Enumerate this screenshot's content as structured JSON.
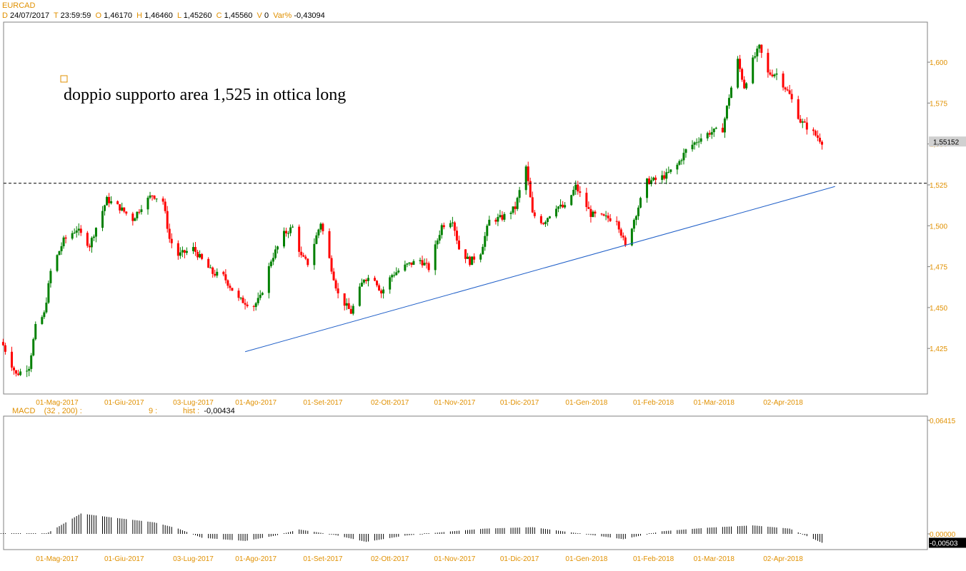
{
  "symbol": "EURCAD",
  "ohlc_header": {
    "d_key": "D",
    "date": "24/07/2017",
    "t_key": "T",
    "time": "23:59:59",
    "o_key": "O",
    "open": "1,46170",
    "h_key": "H",
    "high": "1,46460",
    "l_key": "L",
    "low": "1,45260",
    "c_key": "C",
    "close": "1,45560",
    "v_key": "V",
    "volume": "0",
    "var_key": "Var%",
    "var": "-0,43094"
  },
  "macd_header": {
    "name": "MACD",
    "params": "(32 , 200) :",
    "signal": "9 :",
    "hist_label": "hist :",
    "hist_value": "-0,00434"
  },
  "colors": {
    "up": "#008000",
    "down": "#ff0000",
    "text_orange": "#e09000",
    "trendline": "#1f5fc8",
    "frame": "#808080",
    "price_tag_bg": "#d0d0d0",
    "macd_tag_bg": "#000000"
  },
  "chart_data": [
    {
      "type": "candlestick",
      "title": "EURCAD",
      "annotation": "doppio supporto area 1,525 in ottica long",
      "x_ticks": [
        "01-Mag-2017",
        "01-Giu-2017",
        "03-Lug-2017",
        "01-Ago-2017",
        "01-Set-2017",
        "02-Ott-2017",
        "01-Nov-2017",
        "01-Dic-2017",
        "01-Gen-2018",
        "01-Feb-2018",
        "01-Mar-2018",
        "02-Apr-2018"
      ],
      "y_ticks": [
        "1,600",
        "1,575",
        "1,550",
        "1,525",
        "1,500",
        "1,475",
        "1,450",
        "1,425"
      ],
      "ylim": [
        1.398,
        1.622
      ],
      "last_price_label": "1,55152",
      "last_price": 1.5515,
      "support_level": 1.526,
      "trendline": [
        {
          "x": "2017-07-27",
          "y": 1.423
        },
        {
          "x": "2018-04-26",
          "y": 1.524
        }
      ],
      "close_path": [
        {
          "x": "2017-04-06",
          "y": 1.427
        },
        {
          "x": "2017-04-12",
          "y": 1.409
        },
        {
          "x": "2017-04-18",
          "y": 1.414
        },
        {
          "x": "2017-04-21",
          "y": 1.438
        },
        {
          "x": "2017-04-25",
          "y": 1.446
        },
        {
          "x": "2017-04-28",
          "y": 1.472
        },
        {
          "x": "2017-05-04",
          "y": 1.491
        },
        {
          "x": "2017-05-10",
          "y": 1.498
        },
        {
          "x": "2017-05-16",
          "y": 1.488
        },
        {
          "x": "2017-05-19",
          "y": 1.499
        },
        {
          "x": "2017-05-24",
          "y": 1.516
        },
        {
          "x": "2017-05-30",
          "y": 1.511
        },
        {
          "x": "2017-06-05",
          "y": 1.504
        },
        {
          "x": "2017-06-09",
          "y": 1.512
        },
        {
          "x": "2017-06-14",
          "y": 1.519
        },
        {
          "x": "2017-06-19",
          "y": 1.515
        },
        {
          "x": "2017-06-22",
          "y": 1.492
        },
        {
          "x": "2017-06-26",
          "y": 1.482
        },
        {
          "x": "2017-07-03",
          "y": 1.486
        },
        {
          "x": "2017-07-07",
          "y": 1.479
        },
        {
          "x": "2017-07-12",
          "y": 1.471
        },
        {
          "x": "2017-07-17",
          "y": 1.469
        },
        {
          "x": "2017-07-24",
          "y": 1.455
        },
        {
          "x": "2017-07-31",
          "y": 1.451
        },
        {
          "x": "2017-08-03",
          "y": 1.456
        },
        {
          "x": "2017-08-08",
          "y": 1.479
        },
        {
          "x": "2017-08-14",
          "y": 1.495
        },
        {
          "x": "2017-08-18",
          "y": 1.499
        },
        {
          "x": "2017-08-22",
          "y": 1.481
        },
        {
          "x": "2017-08-25",
          "y": 1.477
        },
        {
          "x": "2017-08-31",
          "y": 1.502
        },
        {
          "x": "2017-09-05",
          "y": 1.474
        },
        {
          "x": "2017-09-08",
          "y": 1.458
        },
        {
          "x": "2017-09-14",
          "y": 1.447
        },
        {
          "x": "2017-09-20",
          "y": 1.468
        },
        {
          "x": "2017-09-25",
          "y": 1.468
        },
        {
          "x": "2017-09-28",
          "y": 1.459
        },
        {
          "x": "2017-10-03",
          "y": 1.47
        },
        {
          "x": "2017-10-10",
          "y": 1.476
        },
        {
          "x": "2017-10-16",
          "y": 1.479
        },
        {
          "x": "2017-10-20",
          "y": 1.474
        },
        {
          "x": "2017-10-26",
          "y": 1.5
        },
        {
          "x": "2017-10-31",
          "y": 1.504
        },
        {
          "x": "2017-11-03",
          "y": 1.486
        },
        {
          "x": "2017-11-08",
          "y": 1.478
        },
        {
          "x": "2017-11-13",
          "y": 1.484
        },
        {
          "x": "2017-11-17",
          "y": 1.503
        },
        {
          "x": "2017-11-23",
          "y": 1.505
        },
        {
          "x": "2017-11-29",
          "y": 1.511
        },
        {
          "x": "2017-12-04",
          "y": 1.536
        },
        {
          "x": "2017-12-07",
          "y": 1.507
        },
        {
          "x": "2017-12-12",
          "y": 1.502
        },
        {
          "x": "2017-12-18",
          "y": 1.512
        },
        {
          "x": "2017-12-22",
          "y": 1.511
        },
        {
          "x": "2017-12-27",
          "y": 1.524
        },
        {
          "x": "2018-01-03",
          "y": 1.507
        },
        {
          "x": "2018-01-09",
          "y": 1.505
        },
        {
          "x": "2018-01-15",
          "y": 1.504
        },
        {
          "x": "2018-01-19",
          "y": 1.487
        },
        {
          "x": "2018-01-23",
          "y": 1.504
        },
        {
          "x": "2018-01-29",
          "y": 1.527
        },
        {
          "x": "2018-02-02",
          "y": 1.528
        },
        {
          "x": "2018-02-07",
          "y": 1.531
        },
        {
          "x": "2018-02-12",
          "y": 1.537
        },
        {
          "x": "2018-02-16",
          "y": 1.546
        },
        {
          "x": "2018-02-22",
          "y": 1.553
        },
        {
          "x": "2018-02-27",
          "y": 1.557
        },
        {
          "x": "2018-03-05",
          "y": 1.559
        },
        {
          "x": "2018-03-08",
          "y": 1.579
        },
        {
          "x": "2018-03-12",
          "y": 1.601
        },
        {
          "x": "2018-03-15",
          "y": 1.585
        },
        {
          "x": "2018-03-19",
          "y": 1.601
        },
        {
          "x": "2018-03-22",
          "y": 1.609
        },
        {
          "x": "2018-03-26",
          "y": 1.593
        },
        {
          "x": "2018-03-30",
          "y": 1.593
        },
        {
          "x": "2018-04-05",
          "y": 1.58
        },
        {
          "x": "2018-04-10",
          "y": 1.564
        },
        {
          "x": "2018-04-15",
          "y": 1.558
        },
        {
          "x": "2018-04-20",
          "y": 1.5515
        }
      ]
    },
    {
      "type": "bar",
      "title": "MACD (32 , 200)",
      "y_ticks": [
        "0,06415",
        "0,00000"
      ],
      "ylim": [
        -0.00843,
        0.06415
      ],
      "last_value_label": "-0,00503",
      "last_value": -0.00503,
      "x_ticks": [
        "01-Mag-2017",
        "01-Giu-2017",
        "03-Lug-2017",
        "01-Ago-2017",
        "01-Set-2017",
        "02-Ott-2017",
        "01-Nov-2017",
        "01-Dic-2017",
        "01-Gen-2018",
        "01-Feb-2018",
        "01-Mar-2018",
        "02-Apr-2018"
      ],
      "hist_path": [
        {
          "x": "2017-04-04",
          "y": 0.0
        },
        {
          "x": "2017-04-26",
          "y": 0.0001
        },
        {
          "x": "2017-05-12",
          "y": 0.0115
        },
        {
          "x": "2017-05-25",
          "y": 0.0095
        },
        {
          "x": "2017-06-15",
          "y": 0.0065
        },
        {
          "x": "2017-06-26",
          "y": 0.003
        },
        {
          "x": "2017-07-07",
          "y": -0.0022
        },
        {
          "x": "2017-07-27",
          "y": -0.004
        },
        {
          "x": "2017-08-10",
          "y": -0.001
        },
        {
          "x": "2017-08-21",
          "y": 0.0025
        },
        {
          "x": "2017-09-06",
          "y": -0.0005
        },
        {
          "x": "2017-09-21",
          "y": -0.0045
        },
        {
          "x": "2017-10-09",
          "y": -0.001
        },
        {
          "x": "2017-10-31",
          "y": 0.0015
        },
        {
          "x": "2017-11-15",
          "y": 0.003
        },
        {
          "x": "2017-12-07",
          "y": 0.0038
        },
        {
          "x": "2017-12-21",
          "y": 0.0015
        },
        {
          "x": "2018-01-18",
          "y": -0.003
        },
        {
          "x": "2018-02-05",
          "y": 0.0015
        },
        {
          "x": "2018-02-26",
          "y": 0.0035
        },
        {
          "x": "2018-03-19",
          "y": 0.0048
        },
        {
          "x": "2018-04-05",
          "y": 0.003
        },
        {
          "x": "2018-04-20",
          "y": -0.005
        }
      ]
    }
  ]
}
